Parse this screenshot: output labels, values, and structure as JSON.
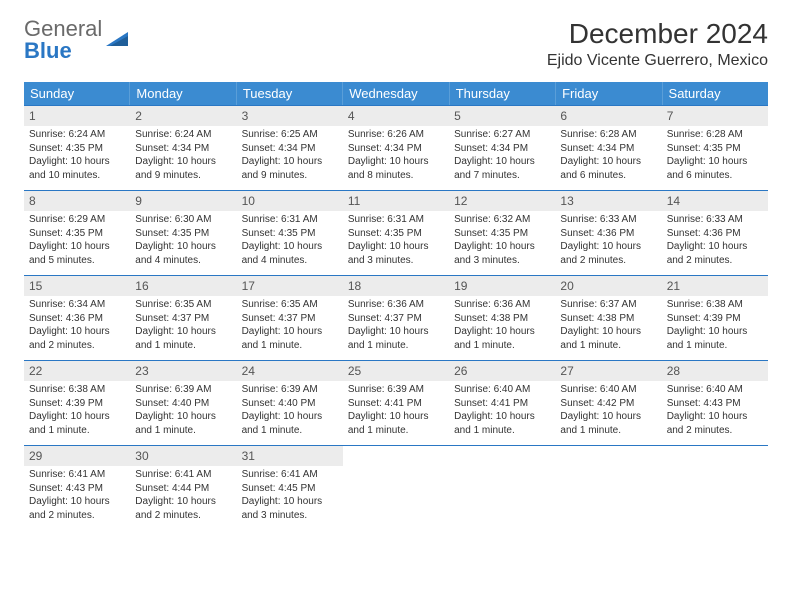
{
  "logo": {
    "part1": "General",
    "part2": "Blue"
  },
  "title": "December 2024",
  "location": "Ejido Vicente Guerrero, Mexico",
  "weekdays": [
    "Sunday",
    "Monday",
    "Tuesday",
    "Wednesday",
    "Thursday",
    "Friday",
    "Saturday"
  ],
  "colors": {
    "header_bg": "#3b8bd1",
    "daynum_bg": "#ececec",
    "week_border": "#2a77c4"
  },
  "days": [
    {
      "n": 1,
      "sunrise": "6:24 AM",
      "sunset": "4:35 PM",
      "daylight": "10 hours and 10 minutes."
    },
    {
      "n": 2,
      "sunrise": "6:24 AM",
      "sunset": "4:34 PM",
      "daylight": "10 hours and 9 minutes."
    },
    {
      "n": 3,
      "sunrise": "6:25 AM",
      "sunset": "4:34 PM",
      "daylight": "10 hours and 9 minutes."
    },
    {
      "n": 4,
      "sunrise": "6:26 AM",
      "sunset": "4:34 PM",
      "daylight": "10 hours and 8 minutes."
    },
    {
      "n": 5,
      "sunrise": "6:27 AM",
      "sunset": "4:34 PM",
      "daylight": "10 hours and 7 minutes."
    },
    {
      "n": 6,
      "sunrise": "6:28 AM",
      "sunset": "4:34 PM",
      "daylight": "10 hours and 6 minutes."
    },
    {
      "n": 7,
      "sunrise": "6:28 AM",
      "sunset": "4:35 PM",
      "daylight": "10 hours and 6 minutes."
    },
    {
      "n": 8,
      "sunrise": "6:29 AM",
      "sunset": "4:35 PM",
      "daylight": "10 hours and 5 minutes."
    },
    {
      "n": 9,
      "sunrise": "6:30 AM",
      "sunset": "4:35 PM",
      "daylight": "10 hours and 4 minutes."
    },
    {
      "n": 10,
      "sunrise": "6:31 AM",
      "sunset": "4:35 PM",
      "daylight": "10 hours and 4 minutes."
    },
    {
      "n": 11,
      "sunrise": "6:31 AM",
      "sunset": "4:35 PM",
      "daylight": "10 hours and 3 minutes."
    },
    {
      "n": 12,
      "sunrise": "6:32 AM",
      "sunset": "4:35 PM",
      "daylight": "10 hours and 3 minutes."
    },
    {
      "n": 13,
      "sunrise": "6:33 AM",
      "sunset": "4:36 PM",
      "daylight": "10 hours and 2 minutes."
    },
    {
      "n": 14,
      "sunrise": "6:33 AM",
      "sunset": "4:36 PM",
      "daylight": "10 hours and 2 minutes."
    },
    {
      "n": 15,
      "sunrise": "6:34 AM",
      "sunset": "4:36 PM",
      "daylight": "10 hours and 2 minutes."
    },
    {
      "n": 16,
      "sunrise": "6:35 AM",
      "sunset": "4:37 PM",
      "daylight": "10 hours and 1 minute."
    },
    {
      "n": 17,
      "sunrise": "6:35 AM",
      "sunset": "4:37 PM",
      "daylight": "10 hours and 1 minute."
    },
    {
      "n": 18,
      "sunrise": "6:36 AM",
      "sunset": "4:37 PM",
      "daylight": "10 hours and 1 minute."
    },
    {
      "n": 19,
      "sunrise": "6:36 AM",
      "sunset": "4:38 PM",
      "daylight": "10 hours and 1 minute."
    },
    {
      "n": 20,
      "sunrise": "6:37 AM",
      "sunset": "4:38 PM",
      "daylight": "10 hours and 1 minute."
    },
    {
      "n": 21,
      "sunrise": "6:38 AM",
      "sunset": "4:39 PM",
      "daylight": "10 hours and 1 minute."
    },
    {
      "n": 22,
      "sunrise": "6:38 AM",
      "sunset": "4:39 PM",
      "daylight": "10 hours and 1 minute."
    },
    {
      "n": 23,
      "sunrise": "6:39 AM",
      "sunset": "4:40 PM",
      "daylight": "10 hours and 1 minute."
    },
    {
      "n": 24,
      "sunrise": "6:39 AM",
      "sunset": "4:40 PM",
      "daylight": "10 hours and 1 minute."
    },
    {
      "n": 25,
      "sunrise": "6:39 AM",
      "sunset": "4:41 PM",
      "daylight": "10 hours and 1 minute."
    },
    {
      "n": 26,
      "sunrise": "6:40 AM",
      "sunset": "4:41 PM",
      "daylight": "10 hours and 1 minute."
    },
    {
      "n": 27,
      "sunrise": "6:40 AM",
      "sunset": "4:42 PM",
      "daylight": "10 hours and 1 minute."
    },
    {
      "n": 28,
      "sunrise": "6:40 AM",
      "sunset": "4:43 PM",
      "daylight": "10 hours and 2 minutes."
    },
    {
      "n": 29,
      "sunrise": "6:41 AM",
      "sunset": "4:43 PM",
      "daylight": "10 hours and 2 minutes."
    },
    {
      "n": 30,
      "sunrise": "6:41 AM",
      "sunset": "4:44 PM",
      "daylight": "10 hours and 2 minutes."
    },
    {
      "n": 31,
      "sunrise": "6:41 AM",
      "sunset": "4:45 PM",
      "daylight": "10 hours and 3 minutes."
    }
  ],
  "labels": {
    "sunrise": "Sunrise:",
    "sunset": "Sunset:",
    "daylight": "Daylight:"
  },
  "first_day_offset": 0,
  "total_cells": 35
}
